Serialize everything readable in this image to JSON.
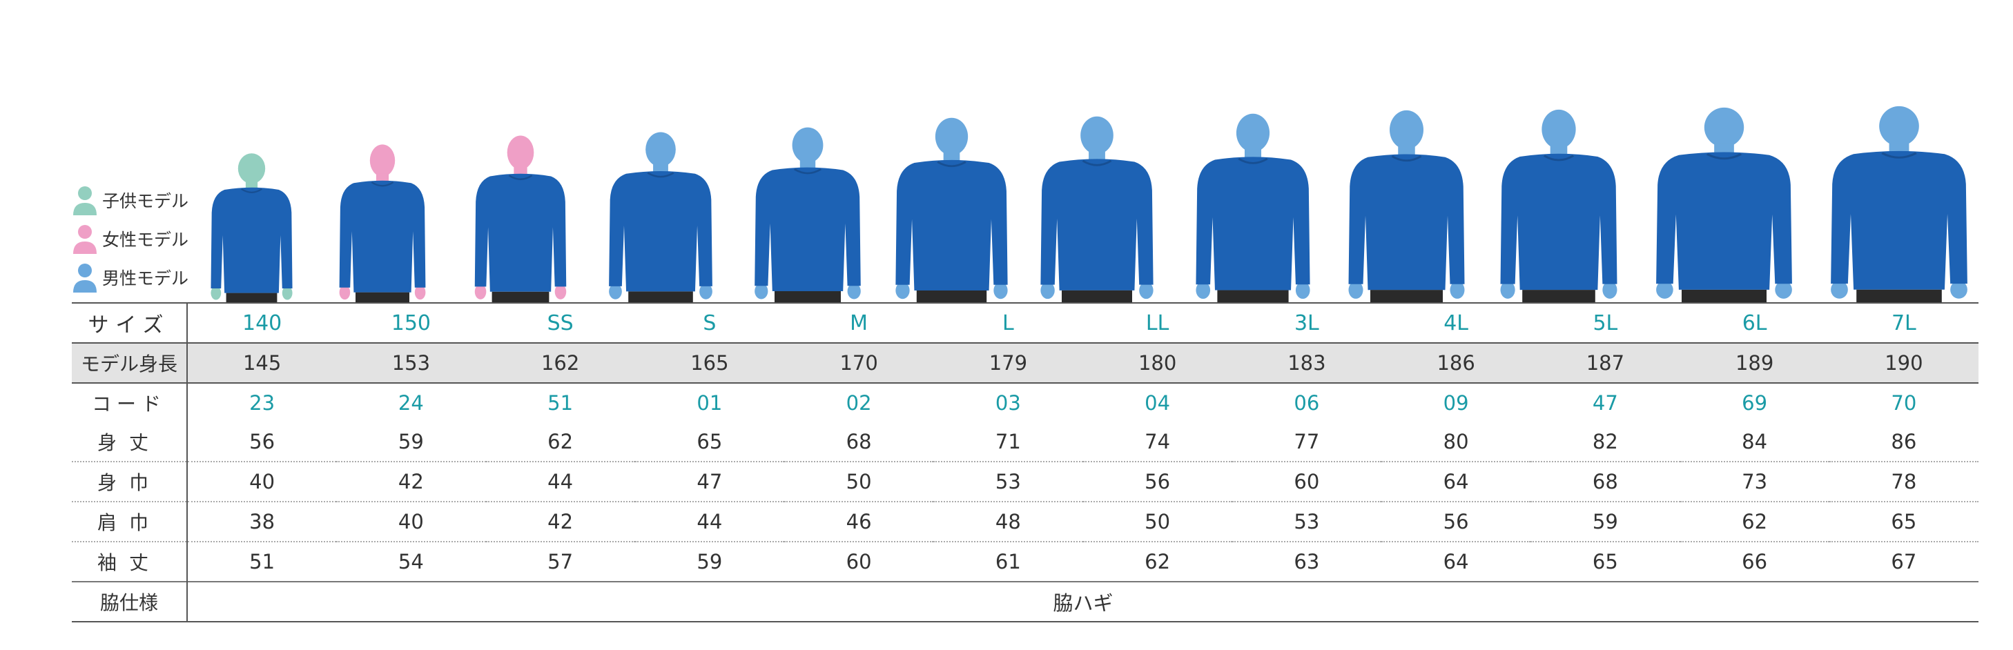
{
  "colors": {
    "child": "#93cfbf",
    "female": "#ef9fc6",
    "male": "#6aa8dd",
    "shirt": "#1d62b4",
    "pants": "#2a2a2a",
    "accent_text": "#1a9ba6"
  },
  "legend": [
    {
      "label": "子供モデル",
      "type": "child"
    },
    {
      "label": "女性モデル",
      "type": "female"
    },
    {
      "label": "男性モデル",
      "type": "male"
    }
  ],
  "models": [
    {
      "type": "child",
      "height_cm": 145
    },
    {
      "type": "female",
      "height_cm": 153
    },
    {
      "type": "female",
      "height_cm": 162
    },
    {
      "type": "male",
      "height_cm": 165
    },
    {
      "type": "male",
      "height_cm": 170
    },
    {
      "type": "male",
      "height_cm": 179
    },
    {
      "type": "male",
      "height_cm": 180
    },
    {
      "type": "male",
      "height_cm": 183
    },
    {
      "type": "male",
      "height_cm": 186
    },
    {
      "type": "male",
      "height_cm": 187
    },
    {
      "type": "male",
      "height_cm": 189
    },
    {
      "type": "male",
      "height_cm": 190
    }
  ],
  "table": {
    "rows": [
      {
        "label": "サイズ",
        "cells": [
          "140",
          "150",
          "SS",
          "S",
          "M",
          "L",
          "LL",
          "3L",
          "4L",
          "5L",
          "6L",
          "7L"
        ]
      },
      {
        "label": "モデル身長",
        "cells": [
          "145",
          "153",
          "162",
          "165",
          "170",
          "179",
          "180",
          "183",
          "186",
          "187",
          "189",
          "190"
        ]
      },
      {
        "label": "コード",
        "cells": [
          "23",
          "24",
          "51",
          "01",
          "02",
          "03",
          "04",
          "06",
          "09",
          "47",
          "69",
          "70"
        ]
      },
      {
        "label": "身丈",
        "cells": [
          "56",
          "59",
          "62",
          "65",
          "68",
          "71",
          "74",
          "77",
          "80",
          "82",
          "84",
          "86"
        ]
      },
      {
        "label": "身巾",
        "cells": [
          "40",
          "42",
          "44",
          "47",
          "50",
          "53",
          "56",
          "60",
          "64",
          "68",
          "73",
          "78"
        ]
      },
      {
        "label": "肩巾",
        "cells": [
          "38",
          "40",
          "42",
          "44",
          "46",
          "48",
          "50",
          "53",
          "56",
          "59",
          "62",
          "65"
        ]
      },
      {
        "label": "袖丈",
        "cells": [
          "51",
          "54",
          "57",
          "59",
          "60",
          "61",
          "62",
          "63",
          "64",
          "65",
          "66",
          "67"
        ]
      }
    ],
    "side_spec": {
      "label": "脇仕様",
      "value": "脇ハギ"
    }
  }
}
